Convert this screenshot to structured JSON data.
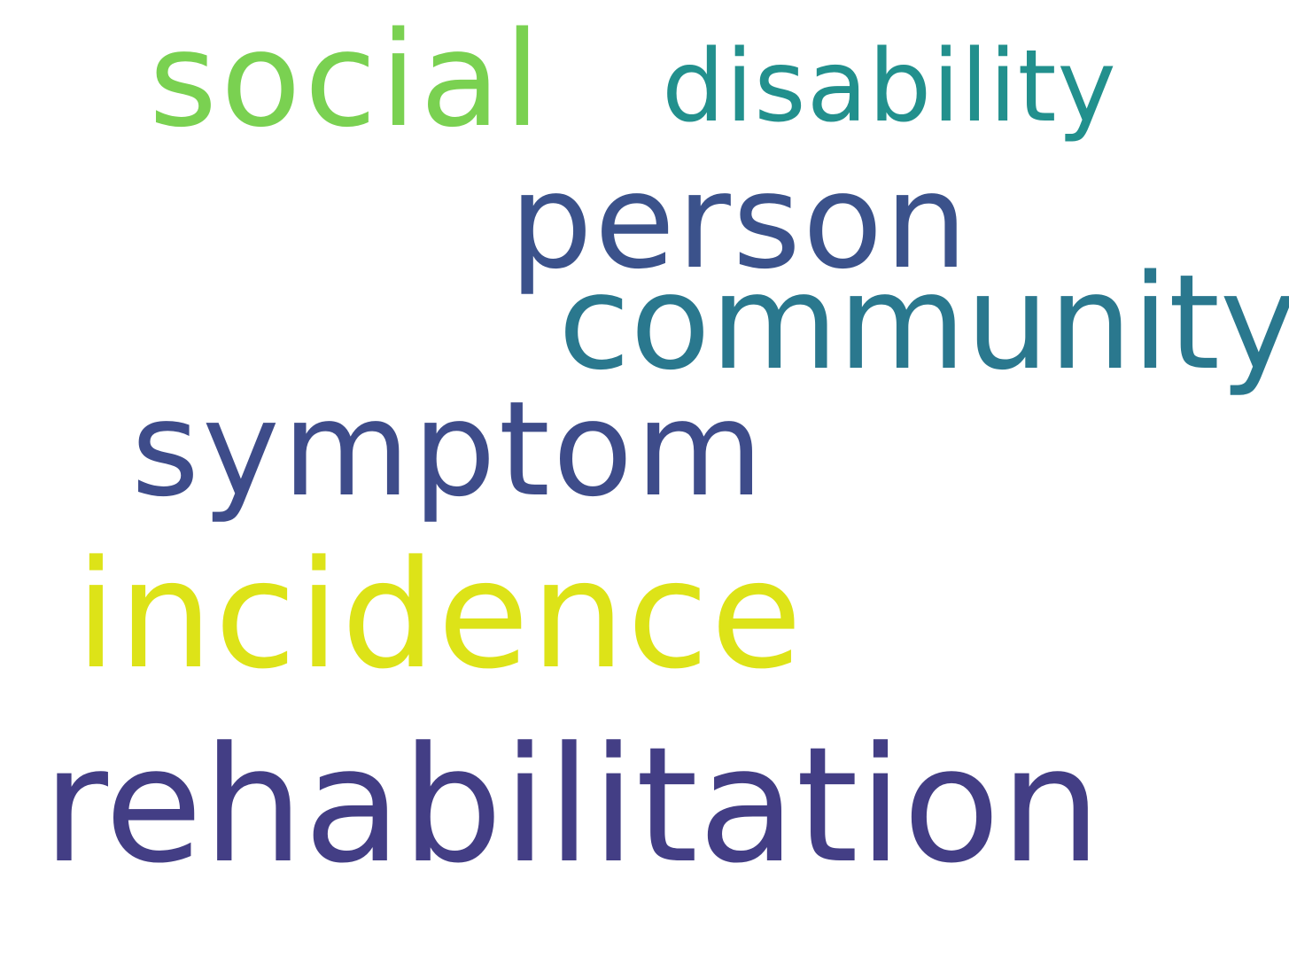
{
  "words": {
    "social": {
      "text": "social",
      "color": "#7ad151"
    },
    "disability": {
      "text": "disability",
      "color": "#22908d"
    },
    "person": {
      "text": "person",
      "color": "#3b528b"
    },
    "community": {
      "text": "community",
      "color": "#2a788e"
    },
    "symptom": {
      "text": "symptom",
      "color": "#3e4c8a"
    },
    "incidence": {
      "text": "incidence",
      "color": "#dde318"
    },
    "rehabilitation": {
      "text": "rehabilitation",
      "color": "#433e85"
    }
  }
}
